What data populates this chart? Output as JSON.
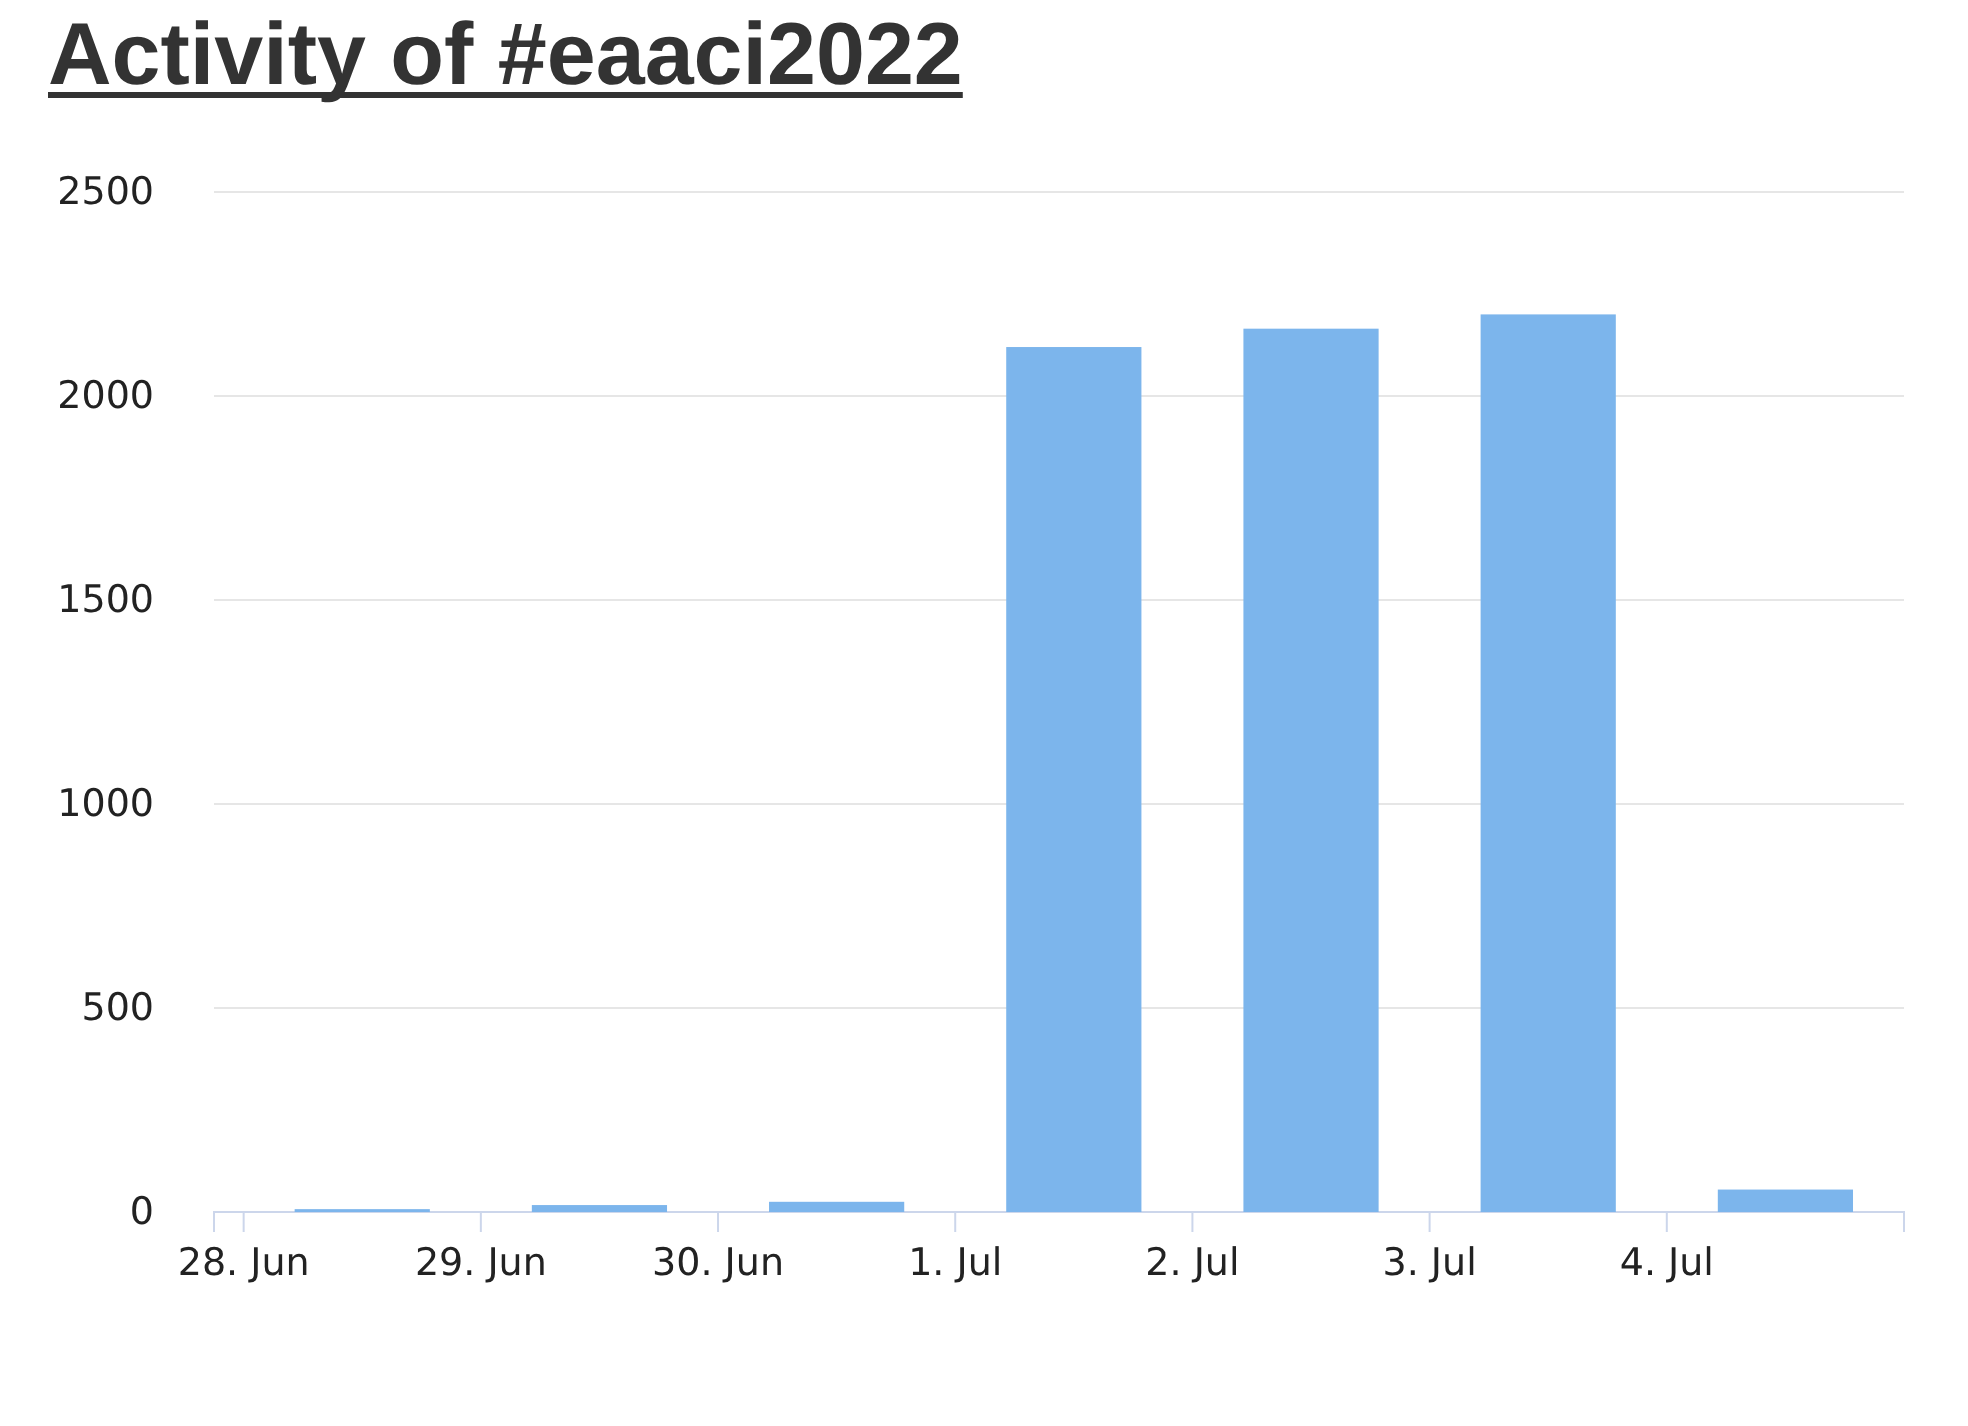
{
  "chart_data": {
    "type": "bar",
    "title": "Activity of #eaaci2022",
    "x": [
      "2022-06-28T12:00",
      "2022-06-29T12:00",
      "2022-06-30T12:00",
      "2022-07-01T12:00",
      "2022-07-02T12:00",
      "2022-07-03T12:00",
      "2022-07-04T12:00"
    ],
    "values": [
      7,
      17,
      25,
      2120,
      2165,
      2200,
      55
    ],
    "color": "#7cb5ec",
    "xlim": [
      "2022-06-27T21:00",
      "2022-07-05T00:00"
    ],
    "xticks": [
      {
        "value": "2022-06-28",
        "label": "28. Jun"
      },
      {
        "value": "2022-06-29",
        "label": "29. Jun"
      },
      {
        "value": "2022-06-30",
        "label": "30. Jun"
      },
      {
        "value": "2022-07-01",
        "label": "1. Jul"
      },
      {
        "value": "2022-07-02",
        "label": "2. Jul"
      },
      {
        "value": "2022-07-03",
        "label": "3. Jul"
      },
      {
        "value": "2022-07-04",
        "label": "4. Jul"
      }
    ],
    "ylim": [
      0,
      2500
    ],
    "yticks": [
      0,
      500,
      1000,
      1500,
      2000,
      2500
    ],
    "grid": "y"
  }
}
